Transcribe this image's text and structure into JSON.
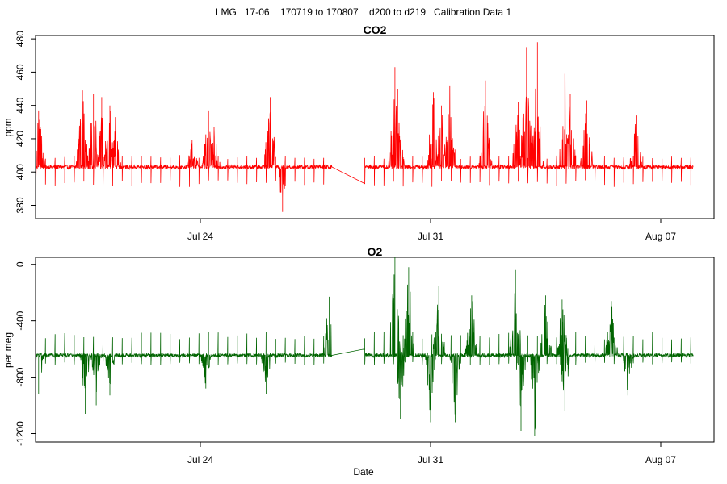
{
  "title": "LMG   17-06    170719 to 170807    d200 to d219   Calibration Data 1",
  "chart_data": [
    {
      "type": "line",
      "title": "CO2",
      "xlabel": "",
      "ylabel": "ppm",
      "xlim": [
        "2017-07-17T18:00",
        "2017-08-08T12:00"
      ],
      "ylim": [
        372,
        482
      ],
      "yticks": [
        380,
        400,
        420,
        440,
        460,
        480
      ],
      "xticks": [
        {
          "date": "2017-07-24",
          "label": "Jul 24"
        },
        {
          "date": "2017-07-31",
          "label": "Jul 31"
        },
        {
          "date": "2017-08-07",
          "label": "Aug 07"
        }
      ],
      "grid": false,
      "series": [
        {
          "color": "#ff0000",
          "x_start": "2017-07-19T00:00",
          "x_end": "2017-08-07T23:59",
          "baseline": 403,
          "noise": 1.2,
          "spikes_up": {
            "amplitude": 6,
            "spacing_hours": 7
          },
          "spikes_down": {
            "amplitude": -10,
            "spacing_hours": 7
          },
          "bursts": [
            {
              "x": "2017-07-19T02:00",
              "peak": 437
            },
            {
              "x": "2017-07-20T10:00",
              "peak": 449
            },
            {
              "x": "2017-07-20T18:00",
              "peak": 447
            },
            {
              "x": "2017-07-21T00:00",
              "peak": 445
            },
            {
              "x": "2017-07-21T06:00",
              "peak": 440
            },
            {
              "x": "2017-07-21T10:00",
              "peak": 433
            },
            {
              "x": "2017-07-23T18:00",
              "peak": 419
            },
            {
              "x": "2017-07-24T06:00",
              "peak": 437
            },
            {
              "x": "2017-07-24T10:00",
              "peak": 427
            },
            {
              "x": "2017-07-26T03:00",
              "peak": 445
            },
            {
              "x": "2017-07-29T22:00",
              "peak": 463
            },
            {
              "x": "2017-07-30T00:00",
              "peak": 450
            },
            {
              "x": "2017-07-31T02:00",
              "peak": 448
            },
            {
              "x": "2017-07-31T08:00",
              "peak": 440
            },
            {
              "x": "2017-07-31T14:00",
              "peak": 452
            },
            {
              "x": "2017-08-01T16:00",
              "peak": 455
            },
            {
              "x": "2017-08-02T16:00",
              "peak": 442
            },
            {
              "x": "2017-08-02T22:00",
              "peak": 475
            },
            {
              "x": "2017-08-03T06:00",
              "peak": 478
            },
            {
              "x": "2017-08-04T02:00",
              "peak": 459
            },
            {
              "x": "2017-08-04T06:00",
              "peak": 447
            },
            {
              "x": "2017-08-04T18:00",
              "peak": 443
            },
            {
              "x": "2017-08-06T06:00",
              "peak": 434
            }
          ],
          "dips": [
            {
              "x": "2017-07-26T12:00",
              "min": 376
            }
          ],
          "gap": {
            "start": "2017-07-28T00:00",
            "end": "2017-07-29T00:00",
            "from": 403,
            "to": 393
          }
        }
      ]
    },
    {
      "type": "line",
      "title": "O2",
      "xlabel": "Date",
      "ylabel": "per meg",
      "xlim": [
        "2017-07-17T18:00",
        "2017-08-08T12:00"
      ],
      "ylim": [
        -1260,
        50
      ],
      "yticks": [
        -1200,
        -800,
        -400,
        0
      ],
      "xticks": [
        {
          "date": "2017-07-24",
          "label": "Jul 24"
        },
        {
          "date": "2017-07-31",
          "label": "Jul 31"
        },
        {
          "date": "2017-08-07",
          "label": "Aug 07"
        }
      ],
      "grid": false,
      "series": [
        {
          "color": "#006400",
          "x_start": "2017-07-19T00:00",
          "x_end": "2017-08-07T23:59",
          "baseline": -645,
          "noise": 14,
          "spikes_up": {
            "amplitude": 140,
            "spacing_hours": 7
          },
          "spikes_down": {
            "amplitude": -60,
            "spacing_hours": 7
          },
          "bursts": [
            {
              "x": "2017-07-27T22:00",
              "peak": -230
            },
            {
              "x": "2017-07-29T22:00",
              "peak": 50
            },
            {
              "x": "2017-07-30T08:00",
              "peak": -20
            },
            {
              "x": "2017-07-31T06:00",
              "peak": -150
            },
            {
              "x": "2017-08-01T06:00",
              "peak": -220
            },
            {
              "x": "2017-08-02T14:00",
              "peak": -40
            },
            {
              "x": "2017-08-03T12:00",
              "peak": -220
            },
            {
              "x": "2017-08-04T00:00",
              "peak": -250
            },
            {
              "x": "2017-08-05T12:00",
              "peak": -260
            }
          ],
          "dips": [
            {
              "x": "2017-07-19T02:00",
              "min": -920
            },
            {
              "x": "2017-07-20T12:00",
              "min": -1060
            },
            {
              "x": "2017-07-20T20:00",
              "min": -1000
            },
            {
              "x": "2017-07-21T06:00",
              "min": -930
            },
            {
              "x": "2017-07-24T04:00",
              "min": -880
            },
            {
              "x": "2017-07-26T00:00",
              "min": -920
            },
            {
              "x": "2017-07-30T02:00",
              "min": -1100
            },
            {
              "x": "2017-07-31T00:00",
              "min": -1120
            },
            {
              "x": "2017-07-31T18:00",
              "min": -1120
            },
            {
              "x": "2017-08-02T18:00",
              "min": -1180
            },
            {
              "x": "2017-08-03T04:00",
              "min": -1220
            },
            {
              "x": "2017-08-04T02:00",
              "min": -1040
            },
            {
              "x": "2017-08-06T00:00",
              "min": -930
            }
          ],
          "gap": {
            "start": "2017-07-28T00:00",
            "end": "2017-07-29T00:00",
            "from": -645,
            "to": -600
          }
        }
      ]
    }
  ]
}
